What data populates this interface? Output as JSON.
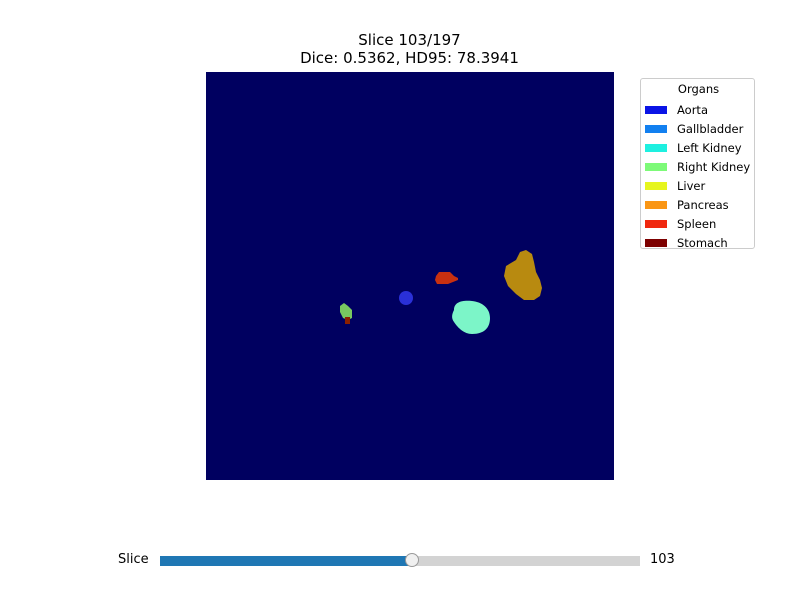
{
  "title": {
    "slice_line": "Slice 103/197",
    "metrics_line": "Dice: 0.5362, HD95: 78.3941"
  },
  "legend": {
    "title": "Organs",
    "items": [
      {
        "label": "Aorta",
        "color": "#0a14e6"
      },
      {
        "label": "Gallbladder",
        "color": "#1280f0"
      },
      {
        "label": "Left Kidney",
        "color": "#1ef0e0"
      },
      {
        "label": "Right Kidney",
        "color": "#7dfa78"
      },
      {
        "label": "Liver",
        "color": "#e6f51e"
      },
      {
        "label": "Pancreas",
        "color": "#fa9614"
      },
      {
        "label": "Spleen",
        "color": "#f0280f"
      },
      {
        "label": "Stomach",
        "color": "#7d0000"
      }
    ]
  },
  "image": {
    "background_color": "#000060",
    "regions": [
      {
        "organ": "Aorta",
        "color": "#2a30d8"
      },
      {
        "organ": "Left Kidney",
        "color": "#7cf5c8"
      },
      {
        "organ": "Spleen",
        "color": "#c83010"
      },
      {
        "organ": "Liver",
        "color": "#b88a10"
      },
      {
        "organ": "Right Kidney",
        "color": "#78c860"
      },
      {
        "organ": "Stomach",
        "color": "#8b2000"
      }
    ]
  },
  "slider": {
    "label": "Slice",
    "value": 103,
    "value_text": "103",
    "min": 0,
    "max": 196,
    "fill_color": "#1f77b4",
    "track_color": "#d3d3d3"
  }
}
